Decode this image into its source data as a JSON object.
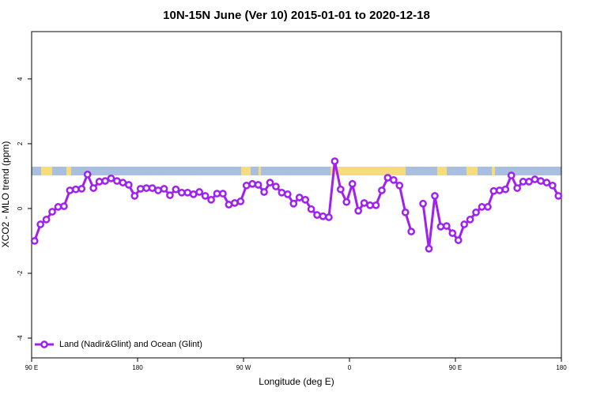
{
  "chart_data": {
    "type": "line",
    "title": "10N-15N June (Ver 10)   2015-01-01 to 2020-12-18",
    "xlabel": "Longitude (deg E)",
    "ylabel": "XCO2 - MLO trend (ppm)",
    "x": [
      92.5,
      97.5,
      102.5,
      107.5,
      112.5,
      117.5,
      122.5,
      127.5,
      132.5,
      137.5,
      142.5,
      147.5,
      152.5,
      157.5,
      162.5,
      167.5,
      172.5,
      177.5,
      182.5,
      187.5,
      192.5,
      197.5,
      202.5,
      207.5,
      212.5,
      217.5,
      222.5,
      227.5,
      232.5,
      237.5,
      242.5,
      247.5,
      252.5,
      257.5,
      262.5,
      267.5,
      272.5,
      277.5,
      282.5,
      287.5,
      292.5,
      297.5,
      302.5,
      307.5,
      312.5,
      317.5,
      322.5,
      327.5,
      332.5,
      337.5,
      342.5,
      347.5,
      352.5,
      357.5,
      362.5,
      367.5,
      372.5,
      377.5,
      382.5,
      387.5,
      392.5,
      397.5,
      402.5,
      407.5,
      412.5,
      417.5,
      422.5,
      427.5,
      432.5,
      437.5,
      442.5,
      447.5,
      452.5,
      457.5,
      462.5,
      467.5,
      472.5,
      477.5,
      482.5,
      487.5,
      492.5,
      497.5,
      502.5,
      507.5,
      512.5,
      517.5,
      522.5,
      527.5,
      532.5,
      537.5
    ],
    "series": [
      {
        "name": "Land (Nadir&Glint) and Ocean (Glint)",
        "color": "#a020f0",
        "values": [
          -1.0,
          -0.49,
          -0.34,
          -0.1,
          0.05,
          0.07,
          0.56,
          0.59,
          0.61,
          1.05,
          0.63,
          0.83,
          0.85,
          0.93,
          0.85,
          0.8,
          0.73,
          0.39,
          0.61,
          0.63,
          0.63,
          0.56,
          0.61,
          0.41,
          0.59,
          0.49,
          0.49,
          0.44,
          0.51,
          0.39,
          0.27,
          0.46,
          0.46,
          0.12,
          0.17,
          0.22,
          0.71,
          0.76,
          0.73,
          0.51,
          0.8,
          0.68,
          0.49,
          0.44,
          0.15,
          0.34,
          0.27,
          -0.02,
          -0.2,
          -0.24,
          -0.27,
          1.46,
          0.59,
          0.2,
          0.76,
          -0.07,
          0.17,
          0.1,
          0.1,
          0.56,
          0.95,
          0.88,
          0.71,
          -0.12,
          -0.71,
          null,
          0.15,
          -1.24,
          0.39,
          -0.56,
          -0.54,
          -0.76,
          -0.98,
          -0.49,
          -0.34,
          -0.12,
          0.05,
          0.05,
          0.54,
          0.56,
          0.59,
          1.02,
          0.63,
          0.83,
          0.83,
          0.9,
          0.85,
          0.8,
          0.71,
          0.39
        ]
      }
    ],
    "xlim": [
      90,
      540
    ],
    "xticks": [
      {
        "value": 90,
        "label": "90 E"
      },
      {
        "value": 180,
        "label": "180"
      },
      {
        "value": 270,
        "label": "90 W"
      },
      {
        "value": 360,
        "label": "0"
      },
      {
        "value": 450,
        "label": "90 E"
      },
      {
        "value": 540,
        "label": "180"
      }
    ],
    "ylim": [
      -4.61,
      5.46
    ],
    "yticks": [
      -4,
      -2,
      0,
      2,
      4
    ],
    "legend": "bottom-left"
  }
}
